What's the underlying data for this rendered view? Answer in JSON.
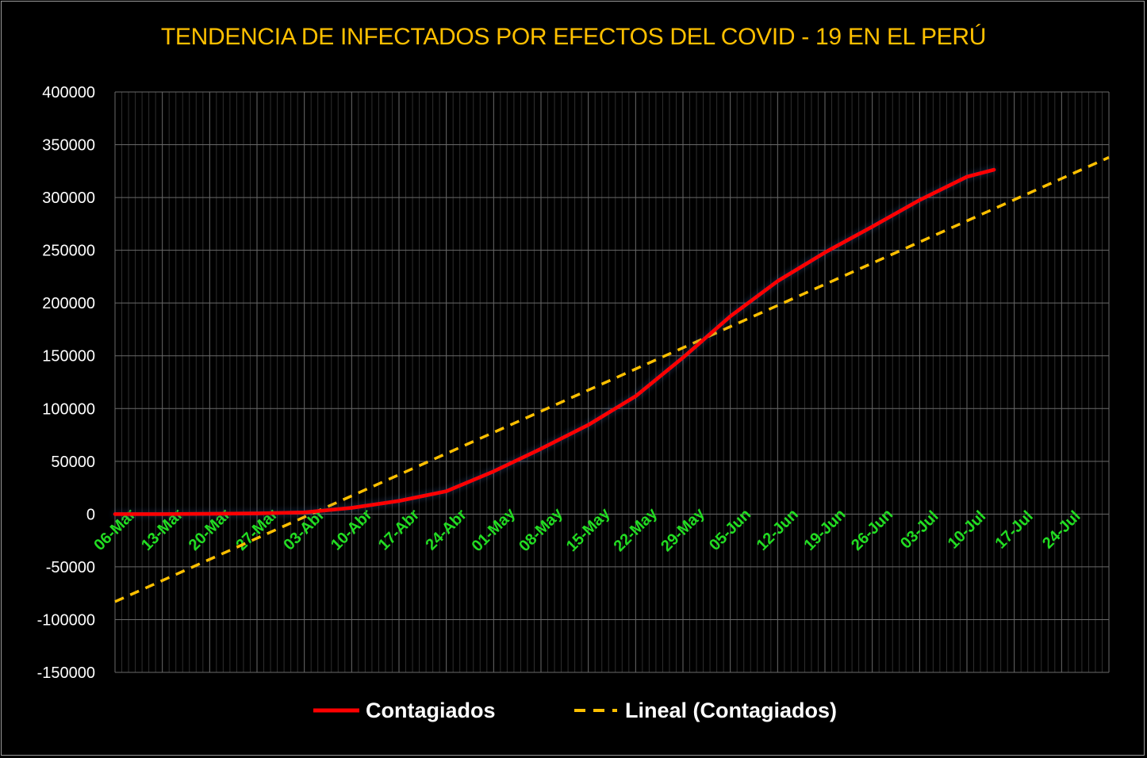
{
  "chart_data": {
    "type": "line",
    "title": "TENDENCIA DE INFECTADOS POR EFECTOS DEL COVID - 19 EN EL PERÚ",
    "xlabel": "",
    "ylabel": "",
    "ylim": [
      -150000,
      400000
    ],
    "yticks": [
      400000,
      350000,
      300000,
      250000,
      200000,
      150000,
      100000,
      50000,
      0,
      -50000,
      -100000,
      -150000
    ],
    "x_start": "06-Mar",
    "x_end": "31-Jul",
    "x_tick_labels": [
      "06-Mar",
      "13-Mar",
      "20-Mar",
      "27-Mar",
      "03-Abr",
      "10-Abr",
      "17-Abr",
      "24-Abr",
      "01-May",
      "08-May",
      "15-May",
      "22-May",
      "29-May",
      "05-Jun",
      "12-Jun",
      "19-Jun",
      "26-Jun",
      "03-Jul",
      "10-Jul",
      "17-Jul",
      "24-Jul"
    ],
    "grid": true,
    "legend_position": "bottom",
    "series": [
      {
        "name": "Contagiados",
        "color": "#ff0000",
        "style": "solid",
        "points": [
          [
            "06-Mar",
            1
          ],
          [
            "13-Mar",
            38
          ],
          [
            "20-Mar",
            234
          ],
          [
            "27-Mar",
            635
          ],
          [
            "03-Abr",
            1595
          ],
          [
            "10-Abr",
            5897
          ],
          [
            "17-Abr",
            12491
          ],
          [
            "24-Abr",
            21648
          ],
          [
            "01-May",
            40459
          ],
          [
            "08-May",
            61847
          ],
          [
            "15-May",
            84495
          ],
          [
            "22-May",
            111698
          ],
          [
            "29-May",
            148285
          ],
          [
            "05-Jun",
            187400
          ],
          [
            "12-Jun",
            220749
          ],
          [
            "19-Jun",
            247925
          ],
          [
            "26-Jun",
            272364
          ],
          [
            "03-Jul",
            297563
          ],
          [
            "10-Jul",
            319646
          ],
          [
            "14-Jul",
            326326
          ]
        ]
      },
      {
        "name": "Lineal (Contagiados)",
        "color": "#ffc000",
        "style": "dashed",
        "points": [
          [
            "06-Mar",
            -83000
          ],
          [
            "31-Jul",
            338000
          ]
        ]
      }
    ]
  }
}
